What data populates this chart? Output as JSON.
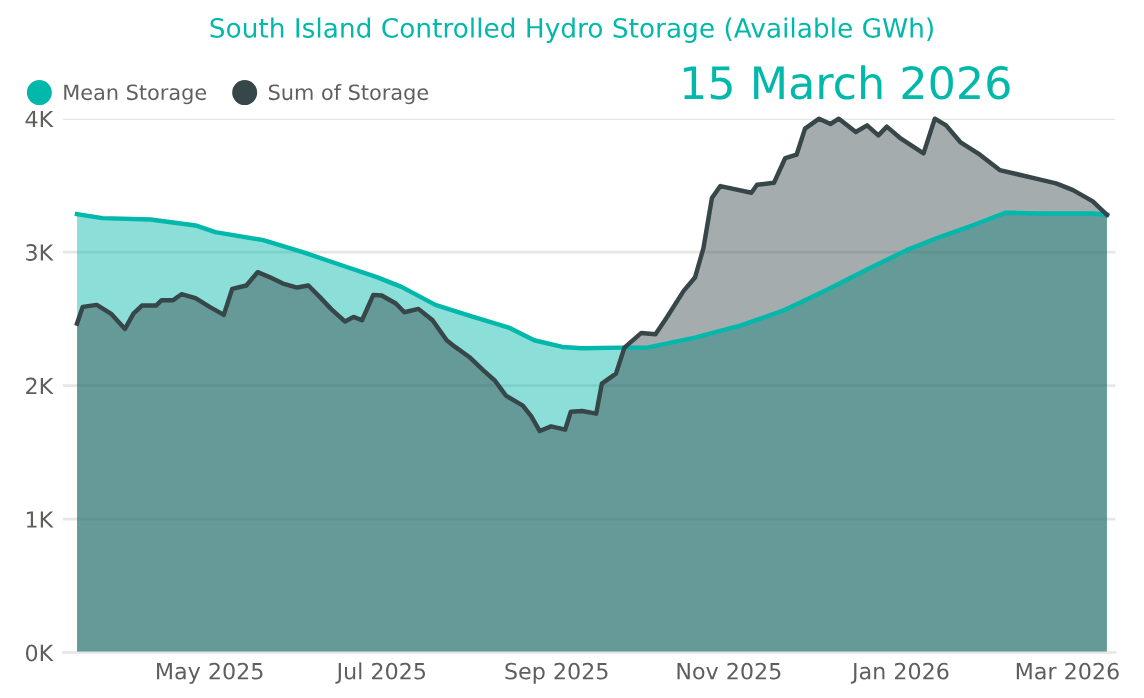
{
  "chart_data": {
    "type": "area",
    "title": "South Island Controlled Hydro Storage (Available GWh)",
    "annotations": [
      "15 March 2026"
    ],
    "legend": "top left",
    "grid": "y",
    "marker": "none",
    "line_style": "solid",
    "xlim": [
      "2025-03-10",
      "2026-03-18"
    ],
    "xticks": [
      {
        "value": "2025-05-01",
        "label": "May 2025"
      },
      {
        "value": "2025-07-01",
        "label": "Jul 2025"
      },
      {
        "value": "2025-09-01",
        "label": "Sep 2025"
      },
      {
        "value": "2025-11-01",
        "label": "Nov 2025"
      },
      {
        "value": "2026-01-01",
        "label": "Jan 2026"
      },
      {
        "value": "2026-03-01",
        "label": "Mar 2026"
      }
    ],
    "ylim": [
      0,
      4000
    ],
    "yticks": [
      {
        "value": 0,
        "label": "0K"
      },
      {
        "value": 1000,
        "label": "1K"
      },
      {
        "value": 2000,
        "label": "2K"
      },
      {
        "value": 3000,
        "label": "3K"
      },
      {
        "value": 4000,
        "label": "4K"
      }
    ],
    "series": [
      {
        "name": "Mean Storage",
        "color": "#01b8aa",
        "x": [
          "2025-03-15",
          "2025-03-24",
          "2025-04-10",
          "2025-04-26",
          "2025-05-03",
          "2025-05-20",
          "2025-06-03",
          "2025-06-17",
          "2025-06-29",
          "2025-07-08",
          "2025-07-20",
          "2025-08-01",
          "2025-08-15",
          "2025-08-24",
          "2025-09-03",
          "2025-09-10",
          "2025-09-24",
          "2025-10-03",
          "2025-10-20",
          "2025-11-05",
          "2025-11-20",
          "2025-12-06",
          "2025-12-20",
          "2026-01-03",
          "2026-01-15",
          "2026-01-27",
          "2026-02-07",
          "2026-02-19",
          "2026-03-10",
          "2026-03-15"
        ],
        "values": [
          3285,
          3255,
          3245,
          3200,
          3150,
          3090,
          3000,
          2900,
          2815,
          2740,
          2605,
          2525,
          2435,
          2340,
          2290,
          2280,
          2285,
          2285,
          2360,
          2450,
          2560,
          2720,
          2870,
          3015,
          3115,
          3205,
          3295,
          3290,
          3290,
          3280
        ]
      },
      {
        "name": "Sum of Storage",
        "color": "#374649",
        "x": [
          "2025-03-15",
          "2025-03-17",
          "2025-03-22",
          "2025-03-27",
          "2025-04-01",
          "2025-04-04",
          "2025-04-07",
          "2025-04-12",
          "2025-04-14",
          "2025-04-18",
          "2025-04-21",
          "2025-04-26",
          "2025-05-01",
          "2025-05-06",
          "2025-05-09",
          "2025-05-14",
          "2025-05-18",
          "2025-05-22",
          "2025-05-27",
          "2025-06-01",
          "2025-06-05",
          "2025-06-09",
          "2025-06-13",
          "2025-06-18",
          "2025-06-21",
          "2025-06-24",
          "2025-06-28",
          "2025-07-01",
          "2025-07-06",
          "2025-07-09",
          "2025-07-14",
          "2025-07-19",
          "2025-07-24",
          "2025-07-27",
          "2025-08-01",
          "2025-08-06",
          "2025-08-10",
          "2025-08-14",
          "2025-08-20",
          "2025-08-23",
          "2025-08-26",
          "2025-08-30",
          "2025-09-04",
          "2025-09-06",
          "2025-09-10",
          "2025-09-15",
          "2025-09-17",
          "2025-09-22",
          "2025-09-25",
          "2025-10-01",
          "2025-10-06",
          "2025-10-10",
          "2025-10-16",
          "2025-10-20",
          "2025-10-23",
          "2025-10-26",
          "2025-10-29",
          "2025-11-09",
          "2025-11-11",
          "2025-11-17",
          "2025-11-21",
          "2025-11-25",
          "2025-11-28",
          "2025-12-03",
          "2025-12-07",
          "2025-12-10",
          "2025-12-16",
          "2025-12-20",
          "2025-12-24",
          "2025-12-27",
          "2026-01-01",
          "2026-01-09",
          "2026-01-13",
          "2026-01-17",
          "2026-01-22",
          "2026-01-29",
          "2026-02-05",
          "2026-02-12",
          "2026-02-19",
          "2026-02-25",
          "2026-03-03",
          "2026-03-10",
          "2026-03-15"
        ],
        "values": [
          2465,
          2590,
          2605,
          2540,
          2425,
          2540,
          2600,
          2600,
          2640,
          2640,
          2685,
          2655,
          2590,
          2530,
          2725,
          2750,
          2850,
          2815,
          2765,
          2735,
          2750,
          2665,
          2575,
          2480,
          2515,
          2490,
          2680,
          2675,
          2615,
          2550,
          2575,
          2490,
          2340,
          2290,
          2215,
          2115,
          2040,
          1925,
          1850,
          1770,
          1660,
          1695,
          1670,
          1805,
          1810,
          1790,
          2015,
          2090,
          2285,
          2395,
          2385,
          2510,
          2710,
          2810,
          3030,
          3405,
          3495,
          3445,
          3505,
          3520,
          3705,
          3730,
          3925,
          4000,
          3960,
          4000,
          3900,
          3950,
          3875,
          3940,
          3850,
          3740,
          4000,
          3950,
          3825,
          3730,
          3615,
          3580,
          3545,
          3515,
          3465,
          3380,
          3280
        ]
      }
    ]
  }
}
